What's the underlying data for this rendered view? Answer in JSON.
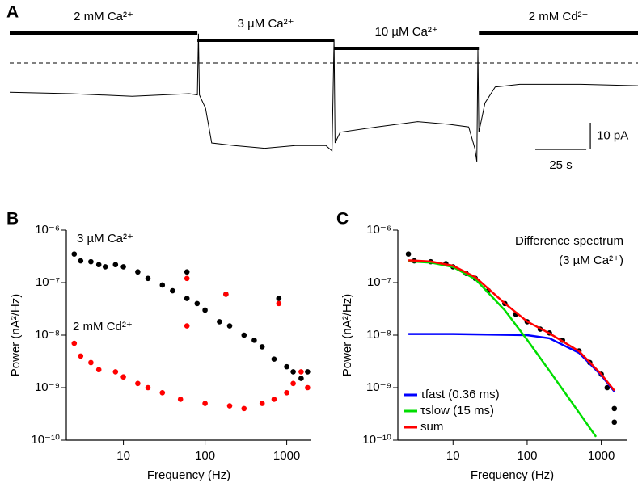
{
  "chart_data": [
    {
      "type": "trace",
      "panel": "A",
      "periods": [
        {
          "label": "2 mM Ca²⁺",
          "start": 0,
          "end": 92
        },
        {
          "label": "3 µM Ca²⁺",
          "start": 92,
          "end": 159
        },
        {
          "label": "10 µM Ca²⁺",
          "start": 159,
          "end": 230
        },
        {
          "label": "2 mM Cd²⁺",
          "start": 230,
          "end": 308
        }
      ],
      "baseline": 0,
      "xlim": [
        0,
        308
      ],
      "ylim": [
        -40,
        5
      ],
      "series": [
        {
          "color": "#000000",
          "x": [
            0,
            30,
            60,
            88,
            92,
            92.5,
            93,
            96,
            99,
            110,
            125,
            140,
            155,
            158,
            159,
            159.5,
            162,
            180,
            200,
            215,
            225,
            228,
            229,
            229.5,
            230,
            233,
            238,
            250,
            280,
            308
          ],
          "values": [
            -11,
            -11.5,
            -12.5,
            -11.5,
            -12,
            11,
            -12,
            -17,
            -30,
            -31,
            -32,
            -31,
            -31,
            -33,
            9,
            -30,
            -26,
            -24,
            -22,
            -23,
            -24,
            -32,
            -37,
            5,
            -26,
            -15,
            -9,
            -8,
            -8,
            -8.5
          ]
        }
      ],
      "scalebar": {
        "x": 25,
        "x_label": "25 s",
        "y": 10,
        "y_label": "10 pA"
      }
    },
    {
      "type": "scatter",
      "panel": "B",
      "log_x": true,
      "log_y": true,
      "xlabel": "Frequency (Hz)",
      "ylabel": "Power (nA²/Hz)",
      "xlim": [
        2,
        2000
      ],
      "ylim": [
        1e-10,
        1e-06
      ],
      "xticks": [
        10,
        100,
        1000
      ],
      "yticks": [
        {
          "value": 1e-10,
          "label": "10⁻¹⁰"
        },
        {
          "value": 1e-09,
          "label": "10⁻⁹"
        },
        {
          "value": 1e-08,
          "label": "10⁻⁸"
        },
        {
          "value": 1e-07,
          "label": "10⁻⁷"
        },
        {
          "value": 1e-06,
          "label": "10⁻⁶"
        }
      ],
      "legend": "inline",
      "series": [
        {
          "name": "3 µM Ca²⁺",
          "color": "#000000",
          "x": [
            2.5,
            3,
            4,
            5,
            6,
            8,
            10,
            15,
            20,
            30,
            40,
            60,
            60,
            80,
            100,
            150,
            180,
            200,
            300,
            400,
            500,
            700,
            800,
            1000,
            1200,
            1500,
            1800
          ],
          "values": [
            3.5e-07,
            2.6e-07,
            2.5e-07,
            2.2e-07,
            2e-07,
            2.2e-07,
            2e-07,
            1.6e-07,
            1.2e-07,
            9e-08,
            7e-08,
            5e-08,
            1.6e-07,
            4e-08,
            3e-08,
            1.8e-08,
            6e-08,
            1.5e-08,
            1e-08,
            8e-09,
            6e-09,
            3.5e-09,
            5e-08,
            2.5e-09,
            2e-09,
            1.5e-09,
            2e-09
          ]
        },
        {
          "name": "2 mM Cd²⁺",
          "color": "#ff0000",
          "x": [
            2.5,
            3,
            4,
            5,
            8,
            10,
            15,
            20,
            30,
            50,
            60,
            60,
            100,
            180,
            200,
            300,
            500,
            700,
            800,
            1000,
            1200,
            1500,
            1800
          ],
          "values": [
            7e-09,
            4e-09,
            3e-09,
            2.2e-09,
            2e-09,
            1.6e-09,
            1.2e-09,
            1e-09,
            8e-10,
            6e-10,
            1.2e-07,
            1.5e-08,
            5e-10,
            6e-08,
            4.5e-10,
            4e-10,
            5e-10,
            6e-10,
            4e-08,
            8e-10,
            1.2e-09,
            2e-09,
            1e-09
          ]
        }
      ]
    },
    {
      "type": "scatter",
      "panel": "C",
      "log_x": true,
      "log_y": true,
      "xlabel": "Frequency (Hz)",
      "ylabel": "Power (nA²/Hz)",
      "xlim": [
        1.8,
        2200
      ],
      "ylim": [
        1e-10,
        1e-06
      ],
      "xticks": [
        10,
        100,
        1000
      ],
      "yticks": [
        {
          "value": 1e-10,
          "label": "10⁻¹⁰"
        },
        {
          "value": 1e-09,
          "label": "10⁻⁹"
        },
        {
          "value": 1e-08,
          "label": "10⁻⁸"
        },
        {
          "value": 1e-07,
          "label": "10⁻⁷"
        },
        {
          "value": 1e-06,
          "label": "10⁻⁶"
        }
      ],
      "annotation": [
        "Difference spectrum",
        "(3 µM Ca²⁺)"
      ],
      "legend": "lower left",
      "series": [
        {
          "color": "#000000",
          "x": [
            2.5,
            3,
            5,
            8,
            10,
            15,
            20,
            30,
            50,
            70,
            100,
            150,
            200,
            300,
            500,
            700,
            1000,
            1200,
            1500,
            1500
          ],
          "values": [
            3.5e-07,
            2.6e-07,
            2.5e-07,
            2.3e-07,
            2e-07,
            1.5e-07,
            1.2e-07,
            7e-08,
            4e-08,
            2.5e-08,
            1.8e-08,
            1.3e-08,
            1.1e-08,
            8e-09,
            5e-09,
            3e-09,
            1.8e-09,
            1e-09,
            4e-10,
            2.2e-10
          ]
        },
        {
          "name": "τfast (0.36 ms)",
          "color": "#0000ff",
          "line": true,
          "x": [
            2.5,
            10,
            100,
            200,
            500,
            1000,
            1500
          ],
          "values": [
            1.05e-08,
            1.05e-08,
            1e-08,
            8.7e-09,
            4.6e-09,
            1.72e-09,
            8.4e-10
          ]
        },
        {
          "name": "τslow (15 ms)",
          "color": "#00dd00",
          "line": true,
          "x": [
            2.5,
            5,
            10,
            20,
            50,
            100,
            200,
            500,
            850
          ],
          "values": [
            2.55e-07,
            2.41e-07,
            1.99e-07,
            1.16e-07,
            2.98e-08,
            8.15e-09,
            2.09e-09,
            3.36e-10,
            1.16e-10
          ]
        },
        {
          "name": "sum",
          "color": "#ff0000",
          "line": true,
          "x": [
            2.5,
            5,
            10,
            20,
            50,
            100,
            200,
            500,
            1000,
            1500
          ],
          "values": [
            2.66e-07,
            2.52e-07,
            2.1e-07,
            1.27e-07,
            4.03e-08,
            1.82e-08,
            1.08e-08,
            4.94e-09,
            1.8e-09,
            8.8e-10
          ]
        }
      ]
    }
  ]
}
